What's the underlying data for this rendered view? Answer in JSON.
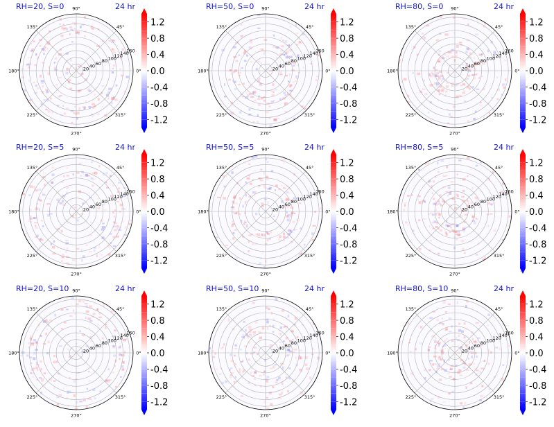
{
  "chart_data": {
    "type": "heatmap",
    "projection": "polar",
    "layout": "3x3 grid of polar heatmaps, each with its own colorbar",
    "time_label": "24 hr",
    "colormap": "bwr",
    "colors": {
      "low": "#0000ff",
      "mid": "#ffffff",
      "high": "#ff0000",
      "title": "#1010d0"
    },
    "colorbar": {
      "range": [
        -1.4,
        1.4
      ],
      "ticks": [
        "1.2",
        "0.8",
        "0.4",
        "0.0",
        "-0.4",
        "-0.8",
        "-1.2"
      ],
      "extend": "both"
    },
    "radial_ticks": [
      "20",
      "40",
      "60",
      "80",
      "100",
      "120",
      "140",
      "160"
    ],
    "radial_range": [
      0,
      170
    ],
    "angle_ticks": [
      "0°",
      "45°",
      "90°",
      "135°",
      "180°",
      "225°",
      "270°",
      "315°"
    ],
    "grid": true,
    "panels": [
      {
        "title": "RH=20, S=0",
        "time": "24 hr"
      },
      {
        "title": "RH=50, S=0",
        "time": "24 hr"
      },
      {
        "title": "RH=80, S=0",
        "time": "24 hr"
      },
      {
        "title": "RH=20, S=5",
        "time": "24 hr"
      },
      {
        "title": "RH=50, S=5",
        "time": "24 hr"
      },
      {
        "title": "RH=80, S=5",
        "time": "24 hr"
      },
      {
        "title": "RH=20, S=10",
        "time": "24 hr"
      },
      {
        "title": "RH=50, S=10",
        "time": "24 hr"
      },
      {
        "title": "RH=80, S=10",
        "time": "24 hr"
      }
    ]
  }
}
